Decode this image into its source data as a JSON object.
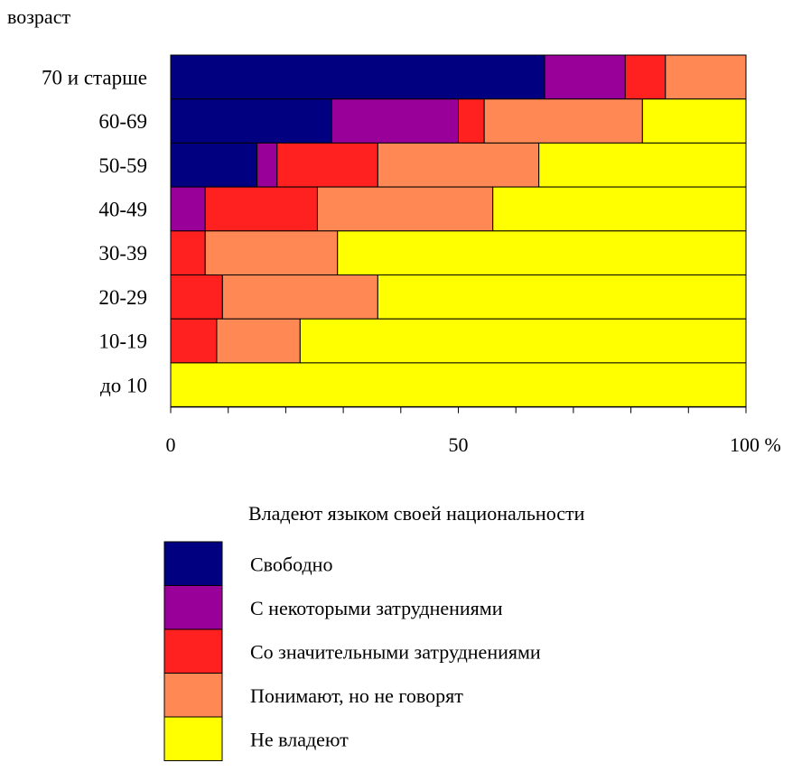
{
  "chart_data": {
    "type": "bar",
    "orientation": "horizontal",
    "stacked": true,
    "title": "",
    "ylabel": "возраст",
    "xlabel": "",
    "xlim": [
      0,
      100
    ],
    "x_ticks": [
      {
        "value": 0,
        "label": "0"
      },
      {
        "value": 50,
        "label": "50"
      },
      {
        "value": 100,
        "label": "100 %"
      }
    ],
    "categories": [
      "70 и старше",
      "60-69",
      "50-59",
      "40-49",
      "30-39",
      "20-29",
      "10-19",
      "до 10"
    ],
    "legend_title": "Владеют языком своей национальности",
    "series": [
      {
        "name": "Свободно",
        "color": "#000080",
        "values": [
          65,
          28,
          15,
          0,
          0,
          0,
          0,
          0
        ]
      },
      {
        "name": "С некоторыми затруднениями",
        "color": "#990099",
        "values": [
          14,
          22,
          3.5,
          6,
          0,
          0,
          0,
          0
        ]
      },
      {
        "name": "Со значительными затруднениями",
        "color": "#ff2020",
        "values": [
          7,
          4.5,
          17.5,
          19.5,
          6,
          9,
          8,
          0
        ]
      },
      {
        "name": "Понимают, но не говорят",
        "color": "#ff8855",
        "values": [
          14,
          27.5,
          28,
          30.5,
          23,
          27,
          14.5,
          0
        ]
      },
      {
        "name": "Не владеют",
        "color": "#ffff00",
        "values": [
          0,
          18,
          36,
          44,
          71,
          64,
          77.5,
          100
        ]
      }
    ]
  }
}
